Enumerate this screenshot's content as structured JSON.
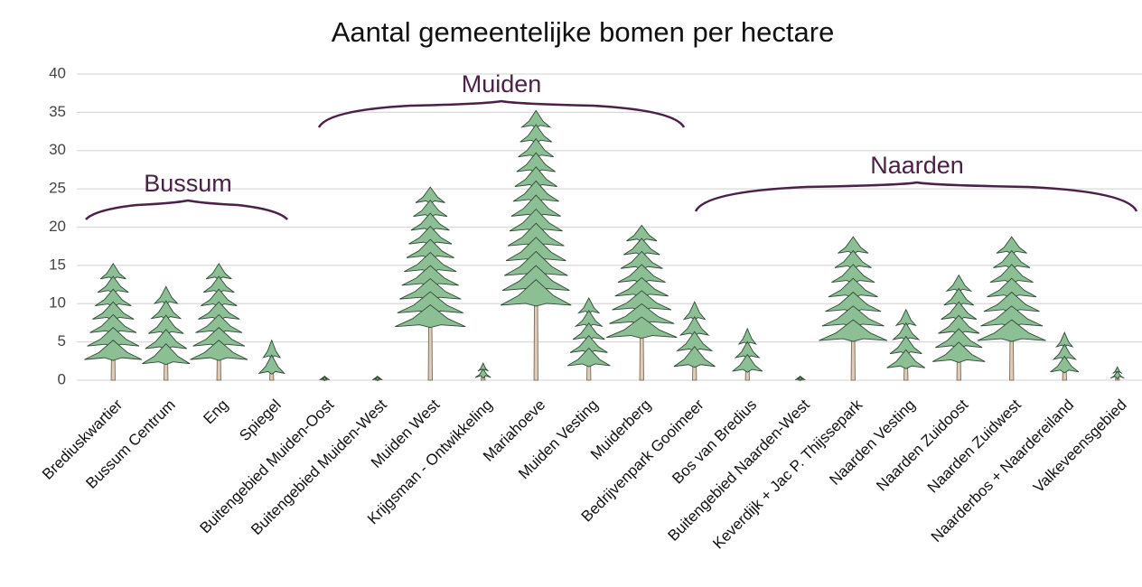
{
  "chart_data": {
    "type": "pictogram-bar",
    "title": "Aantal gemeentelijke bomen per hectare",
    "categories": [
      "Brediuskwartier",
      "Bussum Centrum",
      "Eng",
      "Spiegel",
      "Buitengebied Muiden-Oost",
      "Buitengebied Muiden-West",
      "Muiden West",
      "Krijgsman - Ontwikkeling",
      "Mariahoeve",
      "Muiden Vesting",
      "Muiderberg",
      "Bedrijvenpark Gooimeer",
      "Bos van Bredius",
      "Buitengebied Naarden-West",
      "Keverdijk + Jac P. Thijssepark",
      "Naarden Vesting",
      "Naarden Zuidoost",
      "Naarden Zuidwest",
      "Naarderbos + Naardereiland",
      "Valkeveensgebied"
    ],
    "values": [
      15,
      12,
      15,
      5,
      0.3,
      0.3,
      25,
      2,
      35,
      10.5,
      20,
      10,
      6.5,
      0.3,
      18.5,
      9,
      13.5,
      18.5,
      6,
      1.5
    ],
    "color": "#8dbf94",
    "ylim": [
      0,
      40
    ],
    "yticks": [
      0,
      5,
      10,
      15,
      20,
      25,
      30,
      35,
      40
    ],
    "grid": true,
    "annotations": [
      "Bussum",
      "Muiden",
      "Naarden"
    ]
  }
}
